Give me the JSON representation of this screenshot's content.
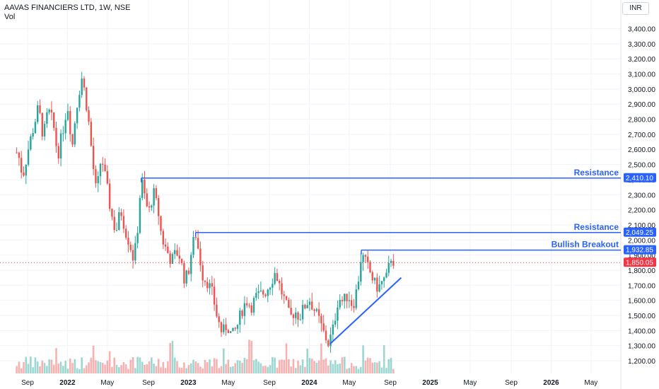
{
  "header": {
    "title": "AAVAS FINANCIERS LTD, 1W, NSE",
    "volume_label": "Vol",
    "currency": "INR"
  },
  "colors": {
    "up": "#26a69a",
    "down": "#ef5350",
    "line": "#2962ff",
    "grid": "#f0f3fa",
    "axis_text": "#131722",
    "current_price": "#f23645"
  },
  "chart_data": {
    "type": "candlestick",
    "y_ticks": [
      "1,200.00",
      "1,300.00",
      "1,400.00",
      "1,500.00",
      "1,600.00",
      "1,700.00",
      "1,800.00",
      "1,900.00",
      "2,000.00",
      "2,100.00",
      "2,200.00",
      "2,300.00",
      "2,400.00",
      "2,500.00",
      "2,600.00",
      "2,700.00",
      "2,800.00",
      "2,900.00",
      "3,000.00",
      "3,100.00",
      "3,200.00",
      "3,300.00",
      "3,400.00"
    ],
    "ylim": [
      1150,
      3450
    ],
    "x_ticks": [
      {
        "label": "Sep",
        "t": 2021.67,
        "bold": false
      },
      {
        "label": "2022",
        "t": 2022.0,
        "bold": true
      },
      {
        "label": "May",
        "t": 2022.33,
        "bold": false
      },
      {
        "label": "Sep",
        "t": 2022.67,
        "bold": false
      },
      {
        "label": "2023",
        "t": 2023.0,
        "bold": true
      },
      {
        "label": "May",
        "t": 2023.33,
        "bold": false
      },
      {
        "label": "Sep",
        "t": 2023.67,
        "bold": false
      },
      {
        "label": "2024",
        "t": 2024.0,
        "bold": true
      },
      {
        "label": "May",
        "t": 2024.33,
        "bold": false
      },
      {
        "label": "Sep",
        "t": 2024.67,
        "bold": false
      },
      {
        "label": "2025",
        "t": 2025.0,
        "bold": true
      },
      {
        "label": "May",
        "t": 2025.33,
        "bold": false
      },
      {
        "label": "Sep",
        "t": 2025.67,
        "bold": false
      },
      {
        "label": "2026",
        "t": 2026.0,
        "bold": true
      },
      {
        "label": "May",
        "t": 2026.33,
        "bold": false
      }
    ],
    "price_path": [
      [
        2021.59,
        2580
      ],
      [
        2021.63,
        2420
      ],
      [
        2021.68,
        2620
      ],
      [
        2021.72,
        2750
      ],
      [
        2021.76,
        2880
      ],
      [
        2021.8,
        2680
      ],
      [
        2021.84,
        2860
      ],
      [
        2021.88,
        2780
      ],
      [
        2021.92,
        2560
      ],
      [
        2021.96,
        2720
      ],
      [
        2022.0,
        2900
      ],
      [
        2022.04,
        2620
      ],
      [
        2022.07,
        2860
      ],
      [
        2022.1,
        3000
      ],
      [
        2022.12,
        3080
      ],
      [
        2022.15,
        2940
      ],
      [
        2022.18,
        2750
      ],
      [
        2022.21,
        2500
      ],
      [
        2022.24,
        2300
      ],
      [
        2022.28,
        2560
      ],
      [
        2022.32,
        2380
      ],
      [
        2022.36,
        2180
      ],
      [
        2022.4,
        2050
      ],
      [
        2022.44,
        2200
      ],
      [
        2022.48,
        2060
      ],
      [
        2022.52,
        1960
      ],
      [
        2022.55,
        1860
      ],
      [
        2022.58,
        2080
      ],
      [
        2022.61,
        2410
      ],
      [
        2022.64,
        2280
      ],
      [
        2022.67,
        2170
      ],
      [
        2022.71,
        2320
      ],
      [
        2022.75,
        2190
      ],
      [
        2022.78,
        2010
      ],
      [
        2022.82,
        1930
      ],
      [
        2022.86,
        1860
      ],
      [
        2022.9,
        1920
      ],
      [
        2022.93,
        1890
      ],
      [
        2022.97,
        1730
      ],
      [
        2023.0,
        1790
      ],
      [
        2023.03,
        1950
      ],
      [
        2023.06,
        2040
      ],
      [
        2023.09,
        1900
      ],
      [
        2023.12,
        1760
      ],
      [
        2023.16,
        1720
      ],
      [
        2023.2,
        1640
      ],
      [
        2023.24,
        1480
      ],
      [
        2023.28,
        1380
      ],
      [
        2023.32,
        1440
      ],
      [
        2023.36,
        1360
      ],
      [
        2023.4,
        1420
      ],
      [
        2023.44,
        1530
      ],
      [
        2023.48,
        1600
      ],
      [
        2023.52,
        1560
      ],
      [
        2023.56,
        1620
      ],
      [
        2023.6,
        1640
      ],
      [
        2023.64,
        1660
      ],
      [
        2023.68,
        1720
      ],
      [
        2023.72,
        1790
      ],
      [
        2023.76,
        1680
      ],
      [
        2023.8,
        1590
      ],
      [
        2023.84,
        1480
      ],
      [
        2023.88,
        1530
      ],
      [
        2023.92,
        1490
      ],
      [
        2023.96,
        1560
      ],
      [
        2024.0,
        1610
      ],
      [
        2024.04,
        1540
      ],
      [
        2024.08,
        1470
      ],
      [
        2024.12,
        1380
      ],
      [
        2024.16,
        1310
      ],
      [
        2024.2,
        1420
      ],
      [
        2024.24,
        1620
      ],
      [
        2024.28,
        1590
      ],
      [
        2024.32,
        1640
      ],
      [
        2024.36,
        1560
      ],
      [
        2024.4,
        1700
      ],
      [
        2024.43,
        1900
      ],
      [
        2024.46,
        1860
      ],
      [
        2024.5,
        1790
      ],
      [
        2024.54,
        1710
      ],
      [
        2024.57,
        1680
      ],
      [
        2024.6,
        1720
      ],
      [
        2024.64,
        1750
      ],
      [
        2024.68,
        1900
      ],
      [
        2024.7,
        1850
      ]
    ],
    "level_lines": [
      {
        "name": "Resistance",
        "price": 2410.1,
        "price_label": "2,410.10",
        "start": 2022.61
      },
      {
        "name": "Resistance",
        "price": 2049.25,
        "price_label": "2,049.25",
        "start": 2023.06
      },
      {
        "name": "Bullish Breakout",
        "price": 1932.85,
        "price_label": "1,932.85",
        "start": 2024.43
      }
    ],
    "current_price": {
      "value": 1850.05,
      "label": "1,850.05"
    },
    "trend_line": [
      [
        2024.17,
        1310
      ],
      [
        2024.76,
        1750
      ]
    ]
  }
}
